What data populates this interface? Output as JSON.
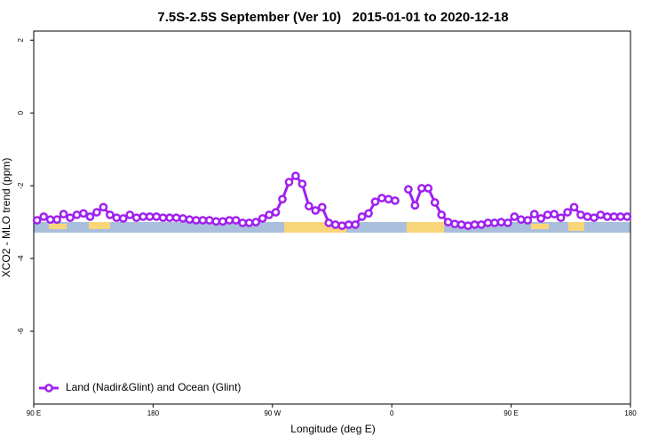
{
  "chart_data": {
    "type": "line",
    "title": "7.5S-2.5S September (Ver 10)   2015-01-01 to 2020-12-18",
    "x_label": "Longitude (deg E)",
    "y_label": "XCO2 - MLO trend (ppm)",
    "xlim": [
      90,
      540
    ],
    "xticks": [
      {
        "value": 90,
        "label": "90 E"
      },
      180,
      {
        "value": 270,
        "label": "90 W"
      },
      {
        "value": 360,
        "label": "0"
      },
      {
        "value": 450,
        "label": "90 E"
      },
      {
        "value": 540,
        "label": "180"
      }
    ],
    "ylim": [
      -8,
      2.25
    ],
    "yticks": [
      2,
      0,
      -2,
      -4,
      -6
    ],
    "legend": "bottom-left",
    "series": [
      {
        "name": "Land (Nadir&Glint) and Ocean (Glint)",
        "color": "#a020f0",
        "x": [
          92.5,
          97.5,
          102.5,
          107.5,
          112.5,
          117.5,
          122.5,
          127.5,
          132.5,
          137.5,
          142.5,
          147.5,
          152.5,
          157.5,
          162.5,
          167.5,
          172.5,
          177.5,
          182.5,
          187.5,
          192.5,
          197.5,
          202.5,
          207.5,
          212.5,
          217.5,
          222.5,
          227.5,
          232.5,
          237.5,
          242.5,
          247.5,
          252.5,
          257.5,
          262.5,
          267.5,
          272.5,
          277.5,
          282.5,
          287.5,
          292.5,
          297.5,
          302.5,
          307.5,
          312.5,
          317.5,
          322.5,
          327.5,
          332.5,
          337.5,
          342.5,
          347.5,
          352.5,
          357.5,
          362.5,
          367.5,
          372.5,
          377.5,
          382.5,
          387.5,
          392.5,
          397.5,
          402.5,
          407.5,
          412.5,
          417.5,
          422.5,
          427.5,
          432.5,
          437.5,
          442.5,
          447.5,
          452.5,
          457.5,
          462.5,
          467.5,
          472.5,
          477.5,
          482.5,
          487.5,
          492.5,
          497.5,
          502.5,
          507.5,
          512.5,
          517.5,
          522.5,
          527.5,
          532.5,
          537.5
        ],
        "values": [
          -2.95,
          -2.85,
          -2.93,
          -2.93,
          -2.78,
          -2.88,
          -2.8,
          -2.76,
          -2.85,
          -2.73,
          -2.59,
          -2.8,
          -2.88,
          -2.9,
          -2.8,
          -2.88,
          -2.85,
          -2.85,
          -2.85,
          -2.88,
          -2.88,
          -2.88,
          -2.9,
          -2.93,
          -2.95,
          -2.95,
          -2.95,
          -2.98,
          -2.98,
          -2.95,
          -2.95,
          -3.02,
          -3.02,
          -3.0,
          -2.9,
          -2.8,
          -2.73,
          -2.37,
          -1.9,
          -1.73,
          -1.95,
          -2.56,
          -2.68,
          -2.59,
          -3.02,
          -3.07,
          -3.1,
          -3.07,
          -3.07,
          -2.85,
          -2.76,
          -2.44,
          -2.34,
          -2.37,
          -2.41,
          null,
          -2.1,
          -2.54,
          -2.07,
          -2.07,
          -2.46,
          -2.8,
          -3.0,
          -3.05,
          -3.07,
          -3.1,
          -3.07,
          -3.07,
          -3.02,
          -3.02,
          -3.0,
          -3.02,
          -2.85,
          -2.93,
          -2.95,
          -2.78,
          -2.9,
          -2.8,
          -2.78,
          -2.88,
          -2.73,
          -2.59,
          -2.8,
          -2.85,
          -2.88,
          -2.8,
          -2.85,
          -2.85,
          -2.85,
          -2.85
        ]
      }
    ]
  }
}
